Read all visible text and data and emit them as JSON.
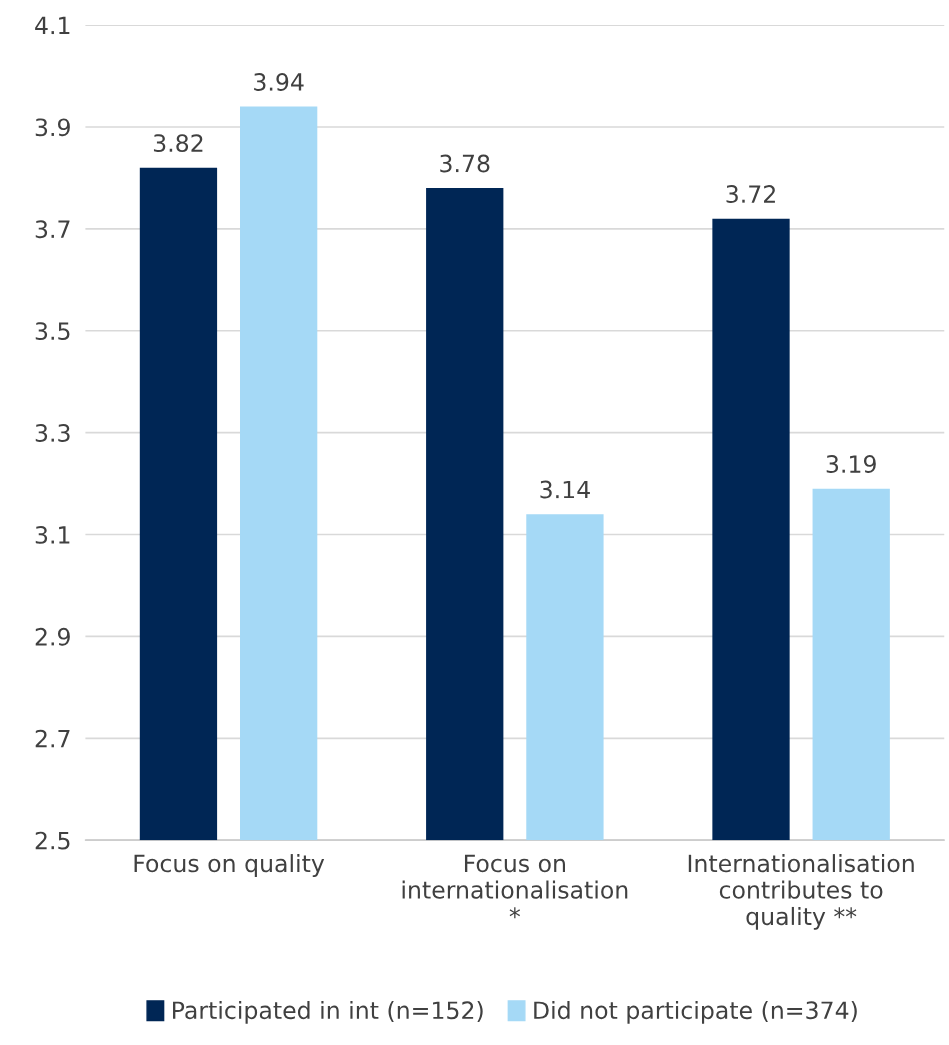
{
  "chart_data": {
    "type": "bar",
    "categories": [
      "Focus on quality",
      "Focus on\ninternationalisation\n*",
      "Internationalisation\ncontributes to\nquality **"
    ],
    "series": [
      {
        "name": "Participated in int (n=152)",
        "color": "#002655",
        "values": [
          3.82,
          3.78,
          3.72
        ]
      },
      {
        "name": "Did not participate (n=374)",
        "color": "#a5d9f6",
        "values": [
          3.94,
          3.14,
          3.19
        ]
      }
    ],
    "ylim": [
      2.5,
      4.1
    ],
    "yticks": [
      2.5,
      2.7,
      2.9,
      3.1,
      3.3,
      3.5,
      3.7,
      3.9,
      4.1
    ],
    "grid": "y",
    "legend": "bottom",
    "data_labels": true
  }
}
